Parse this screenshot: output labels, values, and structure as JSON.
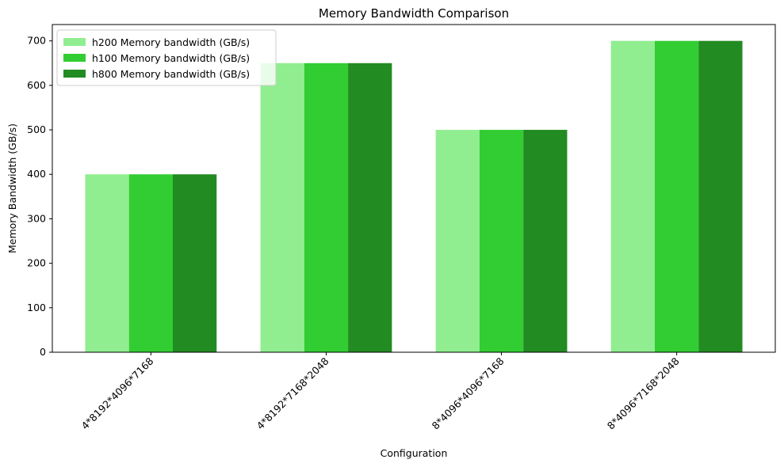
{
  "chart_data": {
    "type": "bar",
    "title": "Memory Bandwidth Comparison",
    "x_label": "Configuration",
    "y_label": "Memory Bandwidth (GB/s)",
    "categories": [
      "4*8192*4096*7168",
      "4*8192*7168*2048",
      "8*4096*4096*7168",
      "8*4096*7168*2048"
    ],
    "series": [
      {
        "name": "h200 Memory bandwidth (GB/s)",
        "color": "#90ee90",
        "values": [
          400,
          650,
          500,
          700
        ]
      },
      {
        "name": "h100 Memory bandwidth (GB/s)",
        "color": "#32cd32",
        "values": [
          400,
          650,
          500,
          700
        ]
      },
      {
        "name": "h800 Memory bandwidth (GB/s)",
        "color": "#228b22",
        "values": [
          400,
          650,
          500,
          700
        ]
      }
    ],
    "ylim": [
      0,
      735
    ],
    "yticks": [
      0,
      100,
      200,
      300,
      400,
      500,
      600,
      700
    ],
    "grid": false,
    "legend": "upper-left"
  }
}
